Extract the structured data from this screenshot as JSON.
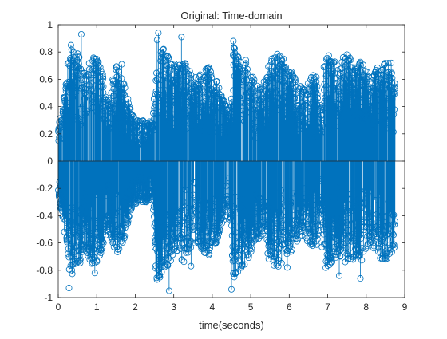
{
  "chart_data": {
    "type": "stem",
    "title": "Original: Time-domain",
    "xlabel": "time(seconds)",
    "ylabel": "",
    "xlim": [
      0,
      9
    ],
    "ylim": [
      -1,
      1
    ],
    "xticks": [
      "0",
      "1",
      "2",
      "3",
      "4",
      "5",
      "6",
      "7",
      "8",
      "9"
    ],
    "yticks": [
      "1",
      "0.8",
      "0.6",
      "0.4",
      "0.2",
      "0",
      "-0.2",
      "-0.4",
      "-0.6",
      "-0.8",
      "-1"
    ],
    "grid": false,
    "series_color": "#0072BD",
    "signal_end_time": 8.75,
    "envelope": {
      "t": [
        0.0,
        0.15,
        0.3,
        0.5,
        0.7,
        0.9,
        1.1,
        1.3,
        1.5,
        1.7,
        1.9,
        2.1,
        2.3,
        2.45,
        2.55,
        2.7,
        2.9,
        3.1,
        3.3,
        3.5,
        3.7,
        3.9,
        4.1,
        4.3,
        4.45,
        4.55,
        4.7,
        4.9,
        5.1,
        5.3,
        5.5,
        5.7,
        5.9,
        6.1,
        6.3,
        6.5,
        6.7,
        6.85,
        6.95,
        7.1,
        7.3,
        7.5,
        7.7,
        7.9,
        8.1,
        8.3,
        8.5,
        8.75
      ],
      "amp": [
        0.25,
        0.5,
        0.85,
        0.8,
        0.65,
        0.8,
        0.7,
        0.5,
        0.7,
        0.6,
        0.35,
        0.3,
        0.3,
        0.28,
        0.9,
        0.85,
        0.75,
        0.7,
        0.75,
        0.6,
        0.65,
        0.7,
        0.6,
        0.45,
        0.35,
        0.85,
        0.8,
        0.75,
        0.6,
        0.55,
        0.75,
        0.8,
        0.7,
        0.65,
        0.55,
        0.6,
        0.65,
        0.35,
        0.8,
        0.75,
        0.7,
        0.8,
        0.7,
        0.75,
        0.6,
        0.7,
        0.75,
        0.65
      ]
    },
    "peaks": [
      {
        "x": 0.28,
        "y": -0.93
      },
      {
        "x": 0.33,
        "y": 0.85
      },
      {
        "x": 0.6,
        "y": 0.93
      },
      {
        "x": 0.95,
        "y": -0.82
      },
      {
        "x": 1.65,
        "y": 0.71
      },
      {
        "x": 2.6,
        "y": 0.94
      },
      {
        "x": 2.63,
        "y": -0.83
      },
      {
        "x": 2.88,
        "y": -0.95
      },
      {
        "x": 3.2,
        "y": 0.91
      },
      {
        "x": 3.45,
        "y": -0.77
      },
      {
        "x": 4.55,
        "y": 0.88
      },
      {
        "x": 4.5,
        "y": -0.94
      },
      {
        "x": 4.57,
        "y": -0.85
      },
      {
        "x": 5.85,
        "y": 0.75
      },
      {
        "x": 5.95,
        "y": -0.78
      },
      {
        "x": 6.85,
        "y": -0.63
      },
      {
        "x": 6.9,
        "y": 0.69
      },
      {
        "x": 7.05,
        "y": -0.76
      },
      {
        "x": 7.3,
        "y": -0.84
      },
      {
        "x": 7.4,
        "y": 0.76
      },
      {
        "x": 7.85,
        "y": -0.86
      },
      {
        "x": 8.5,
        "y": -0.72
      },
      {
        "x": 8.65,
        "y": 0.72
      }
    ]
  }
}
